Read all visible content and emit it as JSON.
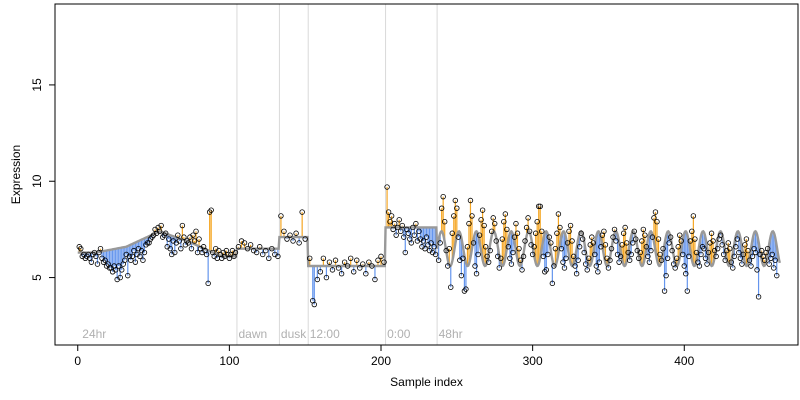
{
  "chart_data": {
    "type": "scatter",
    "title": "",
    "xlabel": "Sample index",
    "ylabel": "Expression",
    "xlim": [
      -15,
      475
    ],
    "ylim": [
      1.5,
      19.2
    ],
    "x_ticks": [
      0,
      100,
      200,
      300,
      400
    ],
    "y_ticks": [
      5,
      10,
      15
    ],
    "grid": false,
    "annotations": [
      {
        "x": 3,
        "label": "24hr"
      },
      {
        "x": 106,
        "label": "dawn"
      },
      {
        "x": 134,
        "label": "dusk"
      },
      {
        "x": 153,
        "label": "12:00"
      },
      {
        "x": 204,
        "label": "0:00"
      },
      {
        "x": 238,
        "label": "48hr"
      }
    ],
    "boundaries": [
      105,
      133,
      152,
      203,
      237
    ],
    "colors": {
      "above": "#f5a623",
      "below": "#6495ed",
      "curve": "#999999",
      "boundary": "#d9d9d9",
      "points": "#000000"
    },
    "segment_levels": [
      {
        "from": 0,
        "to": 104,
        "base": 5.9,
        "wave": [
          [
            12,
            6.3,
            0.3
          ],
          [
            32,
            6.6,
            1.2
          ],
          [
            54,
            7.4,
            1.0
          ],
          [
            75,
            6.8,
            0.8
          ],
          [
            95,
            6.1,
            0.4
          ]
        ]
      },
      {
        "from": 105,
        "to": 132,
        "base": 6.5
      },
      {
        "from": 133,
        "to": 151,
        "base": 7.1
      },
      {
        "from": 152,
        "to": 202,
        "base": 5.6
      },
      {
        "from": 203,
        "to": 236,
        "base": 7.6
      }
    ],
    "oscillation": {
      "from": 237,
      "to": 463,
      "mean": 6.5,
      "amplitude": 0.9,
      "period": 11.5
    },
    "points": [
      [
        1,
        6.6
      ],
      [
        2,
        6.5
      ],
      [
        3,
        6.1
      ],
      [
        4,
        6.2
      ],
      [
        5,
        6.0
      ],
      [
        6,
        6.1
      ],
      [
        7,
        6.2
      ],
      [
        8,
        6.0
      ],
      [
        9,
        5.8
      ],
      [
        10,
        6.2
      ],
      [
        11,
        6.3
      ],
      [
        12,
        6.1
      ],
      [
        13,
        5.7
      ],
      [
        14,
        6.3
      ],
      [
        15,
        6.5
      ],
      [
        16,
        6.0
      ],
      [
        17,
        5.8
      ],
      [
        18,
        5.9
      ],
      [
        19,
        5.6
      ],
      [
        20,
        5.7
      ],
      [
        21,
        5.5
      ],
      [
        22,
        5.5
      ],
      [
        23,
        5.3
      ],
      [
        24,
        5.6
      ],
      [
        25,
        5.4
      ],
      [
        26,
        4.9
      ],
      [
        27,
        5.6
      ],
      [
        28,
        5.0
      ],
      [
        29,
        5.4
      ],
      [
        30,
        5.7
      ],
      [
        31,
        5.9
      ],
      [
        32,
        6.2
      ],
      [
        33,
        5.1
      ],
      [
        34,
        6.1
      ],
      [
        35,
        5.9
      ],
      [
        36,
        6.1
      ],
      [
        37,
        6.4
      ],
      [
        38,
        5.8
      ],
      [
        39,
        6.2
      ],
      [
        40,
        6.5
      ],
      [
        41,
        6.1
      ],
      [
        42,
        6.4
      ],
      [
        43,
        5.9
      ],
      [
        44,
        6.3
      ],
      [
        45,
        6.7
      ],
      [
        46,
        6.8
      ],
      [
        47,
        6.8
      ],
      [
        48,
        7.0
      ],
      [
        49,
        7.1
      ],
      [
        50,
        7.2
      ],
      [
        51,
        7.5
      ],
      [
        52,
        7.3
      ],
      [
        53,
        7.6
      ],
      [
        54,
        7.4
      ],
      [
        55,
        7.7
      ],
      [
        56,
        7.1
      ],
      [
        57,
        7.2
      ],
      [
        58,
        7.3
      ],
      [
        59,
        6.6
      ],
      [
        60,
        7.0
      ],
      [
        61,
        6.5
      ],
      [
        62,
        6.2
      ],
      [
        63,
        6.9
      ],
      [
        64,
        6.3
      ],
      [
        65,
        6.8
      ],
      [
        66,
        7.2
      ],
      [
        67,
        6.9
      ],
      [
        68,
        6.5
      ],
      [
        69,
        7.7
      ],
      [
        70,
        7.1
      ],
      [
        71,
        6.7
      ],
      [
        72,
        6.9
      ],
      [
        73,
        6.8
      ],
      [
        74,
        7.1
      ],
      [
        75,
        6.5
      ],
      [
        76,
        7.2
      ],
      [
        77,
        6.9
      ],
      [
        78,
        7.4
      ],
      [
        79,
        6.3
      ],
      [
        80,
        7.0
      ],
      [
        81,
        6.5
      ],
      [
        82,
        6.3
      ],
      [
        83,
        6.6
      ],
      [
        84,
        6.4
      ],
      [
        85,
        6.2
      ],
      [
        86,
        4.7
      ],
      [
        87,
        8.4
      ],
      [
        88,
        8.5
      ],
      [
        89,
        6.3
      ],
      [
        90,
        6.1
      ],
      [
        91,
        6.5
      ],
      [
        92,
        6.0
      ],
      [
        93,
        6.4
      ],
      [
        94,
        6.2
      ],
      [
        95,
        6.0
      ],
      [
        96,
        6.3
      ],
      [
        97,
        6.1
      ],
      [
        98,
        6.4
      ],
      [
        99,
        6.2
      ],
      [
        100,
        6.0
      ],
      [
        101,
        6.2
      ],
      [
        102,
        6.4
      ],
      [
        103,
        6.1
      ],
      [
        104,
        6.3
      ],
      [
        106,
        6.6
      ],
      [
        108,
        6.9
      ],
      [
        110,
        6.8
      ],
      [
        112,
        6.5
      ],
      [
        114,
        6.7
      ],
      [
        116,
        6.4
      ],
      [
        118,
        6.3
      ],
      [
        120,
        6.6
      ],
      [
        122,
        6.2
      ],
      [
        124,
        6.4
      ],
      [
        126,
        6.0
      ],
      [
        128,
        6.5
      ],
      [
        130,
        6.2
      ],
      [
        132,
        6.1
      ],
      [
        134,
        8.2
      ],
      [
        136,
        7.4
      ],
      [
        138,
        7.0
      ],
      [
        140,
        7.2
      ],
      [
        142,
        6.9
      ],
      [
        144,
        7.3
      ],
      [
        146,
        6.8
      ],
      [
        148,
        8.4
      ],
      [
        150,
        7.0
      ],
      [
        153,
        6.0
      ],
      [
        155,
        3.8
      ],
      [
        156,
        3.6
      ],
      [
        158,
        4.9
      ],
      [
        160,
        5.3
      ],
      [
        162,
        6.0
      ],
      [
        164,
        5.0
      ],
      [
        166,
        5.8
      ],
      [
        168,
        5.4
      ],
      [
        170,
        5.9
      ],
      [
        172,
        5.5
      ],
      [
        174,
        5.2
      ],
      [
        176,
        5.8
      ],
      [
        178,
        5.6
      ],
      [
        180,
        6.0
      ],
      [
        182,
        5.3
      ],
      [
        184,
        5.9
      ],
      [
        186,
        5.5
      ],
      [
        188,
        5.7
      ],
      [
        190,
        5.2
      ],
      [
        192,
        5.8
      ],
      [
        194,
        5.6
      ],
      [
        196,
        4.9
      ],
      [
        198,
        5.9
      ],
      [
        200,
        6.1
      ],
      [
        202,
        5.8
      ],
      [
        204,
        9.7
      ],
      [
        205,
        8.4
      ],
      [
        206,
        7.9
      ],
      [
        207,
        8.2
      ],
      [
        208,
        7.5
      ],
      [
        209,
        7.8
      ],
      [
        210,
        7.2
      ],
      [
        211,
        7.6
      ],
      [
        212,
        8.0
      ],
      [
        213,
        7.4
      ],
      [
        214,
        7.7
      ],
      [
        215,
        7.1
      ],
      [
        216,
        6.3
      ],
      [
        217,
        7.5
      ],
      [
        218,
        7.3
      ],
      [
        219,
        7.0
      ],
      [
        220,
        6.8
      ],
      [
        221,
        7.6
      ],
      [
        222,
        7.2
      ],
      [
        223,
        7.8
      ],
      [
        224,
        6.9
      ],
      [
        225,
        7.4
      ],
      [
        226,
        7.0
      ],
      [
        227,
        6.6
      ],
      [
        228,
        6.9
      ],
      [
        229,
        6.5
      ],
      [
        230,
        7.1
      ],
      [
        231,
        6.7
      ],
      [
        232,
        6.4
      ],
      [
        233,
        6.8
      ],
      [
        234,
        6.3
      ],
      [
        235,
        6.6
      ],
      [
        236,
        6.2
      ],
      [
        238,
        5.9
      ],
      [
        239,
        6.8
      ],
      [
        240,
        8.6
      ],
      [
        241,
        9.2
      ],
      [
        242,
        7.9
      ],
      [
        243,
        6.4
      ],
      [
        244,
        5.6
      ],
      [
        245,
        6.5
      ],
      [
        246,
        4.5
      ],
      [
        247,
        7.3
      ],
      [
        248,
        8.2
      ],
      [
        249,
        9.0
      ],
      [
        250,
        8.6
      ],
      [
        251,
        7.1
      ],
      [
        252,
        5.9
      ],
      [
        253,
        5.1
      ],
      [
        254,
        6.0
      ],
      [
        255,
        4.3
      ],
      [
        256,
        4.4
      ],
      [
        257,
        6.6
      ],
      [
        258,
        7.8
      ],
      [
        259,
        9.0
      ],
      [
        260,
        8.2
      ],
      [
        261,
        6.8
      ],
      [
        262,
        5.6
      ],
      [
        263,
        5.2
      ],
      [
        264,
        6.2
      ],
      [
        265,
        7.2
      ],
      [
        266,
        8.0
      ],
      [
        267,
        8.5
      ],
      [
        268,
        7.7
      ],
      [
        269,
        6.6
      ],
      [
        270,
        6.1
      ],
      [
        271,
        5.8
      ],
      [
        272,
        6.4
      ],
      [
        273,
        7.4
      ],
      [
        274,
        8.1
      ],
      [
        275,
        7.8
      ],
      [
        276,
        6.9
      ],
      [
        277,
        6.1
      ],
      [
        278,
        5.5
      ],
      [
        279,
        6.0
      ],
      [
        280,
        7.0
      ],
      [
        281,
        7.9
      ],
      [
        282,
        8.3
      ],
      [
        283,
        7.5
      ],
      [
        284,
        6.6
      ],
      [
        285,
        6.0
      ],
      [
        286,
        5.7
      ],
      [
        287,
        6.3
      ],
      [
        288,
        7.1
      ],
      [
        289,
        7.8
      ],
      [
        290,
        7.3
      ],
      [
        291,
        6.5
      ],
      [
        292,
        5.9
      ],
      [
        293,
        5.4
      ],
      [
        294,
        6.1
      ],
      [
        295,
        6.9
      ],
      [
        296,
        7.6
      ],
      [
        297,
        8.1
      ],
      [
        298,
        7.4
      ],
      [
        299,
        6.7
      ],
      [
        300,
        6.2
      ],
      [
        301,
        6.6
      ],
      [
        302,
        7.3
      ],
      [
        303,
        7.9
      ],
      [
        304,
        8.7
      ],
      [
        305,
        8.7
      ],
      [
        306,
        7.4
      ],
      [
        307,
        6.1
      ],
      [
        308,
        5.3
      ],
      [
        309,
        5.4
      ],
      [
        310,
        6.2
      ],
      [
        311,
        7.1
      ],
      [
        312,
        6.8
      ],
      [
        313,
        4.7
      ],
      [
        314,
        5.6
      ],
      [
        315,
        6.5
      ],
      [
        316,
        7.3
      ],
      [
        317,
        8.3
      ],
      [
        318,
        7.6
      ],
      [
        319,
        6.5
      ],
      [
        320,
        5.8
      ],
      [
        321,
        5.5
      ],
      [
        322,
        6.0
      ],
      [
        323,
        6.8
      ],
      [
        324,
        7.4
      ],
      [
        325,
        7.7
      ],
      [
        326,
        6.9
      ],
      [
        327,
        6.1
      ],
      [
        328,
        5.6
      ],
      [
        329,
        5.2
      ],
      [
        330,
        5.9
      ],
      [
        331,
        6.6
      ],
      [
        332,
        7.3
      ],
      [
        333,
        7.0
      ],
      [
        334,
        6.3
      ],
      [
        335,
        5.7
      ],
      [
        336,
        5.4
      ],
      [
        337,
        6.0
      ],
      [
        338,
        6.7
      ],
      [
        339,
        7.1
      ],
      [
        340,
        6.8
      ],
      [
        341,
        6.2
      ],
      [
        342,
        5.6
      ],
      [
        343,
        5.3
      ],
      [
        344,
        5.8
      ],
      [
        345,
        6.6
      ],
      [
        346,
        7.2
      ],
      [
        347,
        7.4
      ],
      [
        348,
        6.7
      ],
      [
        349,
        6.0
      ],
      [
        350,
        5.5
      ],
      [
        351,
        5.9
      ],
      [
        352,
        6.5
      ],
      [
        353,
        7.1
      ],
      [
        354,
        7.5
      ],
      [
        355,
        6.9
      ],
      [
        356,
        6.2
      ],
      [
        357,
        5.8
      ],
      [
        358,
        6.1
      ],
      [
        359,
        6.7
      ],
      [
        360,
        7.3
      ],
      [
        361,
        7.6
      ],
      [
        362,
        6.8
      ],
      [
        363,
        6.3
      ],
      [
        364,
        5.9
      ],
      [
        365,
        6.2
      ],
      [
        366,
        6.8
      ],
      [
        367,
        7.4
      ],
      [
        368,
        7.0
      ],
      [
        369,
        6.4
      ],
      [
        370,
        6.0
      ],
      [
        371,
        6.3
      ],
      [
        372,
        6.9
      ],
      [
        373,
        7.5
      ],
      [
        374,
        7.2
      ],
      [
        375,
        6.6
      ],
      [
        376,
        6.1
      ],
      [
        377,
        5.8
      ],
      [
        378,
        6.4
      ],
      [
        379,
        7.1
      ],
      [
        380,
        8.1
      ],
      [
        381,
        8.4
      ],
      [
        382,
        7.9
      ],
      [
        383,
        7.0
      ],
      [
        384,
        6.2
      ],
      [
        385,
        5.9
      ],
      [
        386,
        6.5
      ],
      [
        387,
        4.3
      ],
      [
        388,
        5.1
      ],
      [
        389,
        6.0
      ],
      [
        390,
        6.8
      ],
      [
        391,
        7.1
      ],
      [
        392,
        6.4
      ],
      [
        393,
        5.7
      ],
      [
        394,
        5.5
      ],
      [
        395,
        6.0
      ],
      [
        396,
        6.6
      ],
      [
        397,
        7.2
      ],
      [
        398,
        6.9
      ],
      [
        399,
        6.2
      ],
      [
        400,
        5.6
      ],
      [
        401,
        5.2
      ],
      [
        402,
        4.3
      ],
      [
        403,
        6.1
      ],
      [
        404,
        6.9
      ],
      [
        405,
        7.4
      ],
      [
        406,
        8.2
      ],
      [
        407,
        7.0
      ],
      [
        408,
        6.3
      ],
      [
        409,
        5.8
      ],
      [
        410,
        5.6
      ],
      [
        411,
        6.2
      ],
      [
        412,
        6.6
      ],
      [
        413,
        6.5
      ],
      [
        414,
        6.0
      ],
      [
        415,
        5.7
      ],
      [
        416,
        6.3
      ],
      [
        417,
        6.8
      ],
      [
        418,
        7.3
      ],
      [
        419,
        6.9
      ],
      [
        420,
        6.4
      ],
      [
        421,
        6.1
      ],
      [
        422,
        6.5
      ],
      [
        423,
        7.0
      ],
      [
        424,
        7.2
      ],
      [
        425,
        6.7
      ],
      [
        426,
        6.2
      ],
      [
        427,
        5.9
      ],
      [
        428,
        6.4
      ],
      [
        429,
        6.8
      ],
      [
        430,
        6.5
      ],
      [
        431,
        5.8
      ],
      [
        432,
        5.5
      ],
      [
        433,
        6.1
      ],
      [
        434,
        6.6
      ],
      [
        435,
        7.0
      ],
      [
        436,
        6.3
      ],
      [
        437,
        6.0
      ],
      [
        438,
        5.7
      ],
      [
        439,
        6.2
      ],
      [
        440,
        6.7
      ],
      [
        441,
        7.0
      ],
      [
        442,
        6.4
      ],
      [
        443,
        5.9
      ],
      [
        444,
        5.6
      ],
      [
        445,
        6.1
      ],
      [
        446,
        6.5
      ],
      [
        447,
        6.3
      ],
      [
        448,
        5.4
      ],
      [
        449,
        4.0
      ],
      [
        450,
        6.2
      ],
      [
        451,
        6.4
      ],
      [
        452,
        6.1
      ],
      [
        453,
        5.9
      ],
      [
        454,
        6.3
      ],
      [
        455,
        6.5
      ],
      [
        456,
        5.7
      ],
      [
        457,
        6.0
      ],
      [
        458,
        6.2
      ],
      [
        459,
        5.5
      ],
      [
        460,
        5.9
      ],
      [
        461,
        5.1
      ]
    ]
  }
}
